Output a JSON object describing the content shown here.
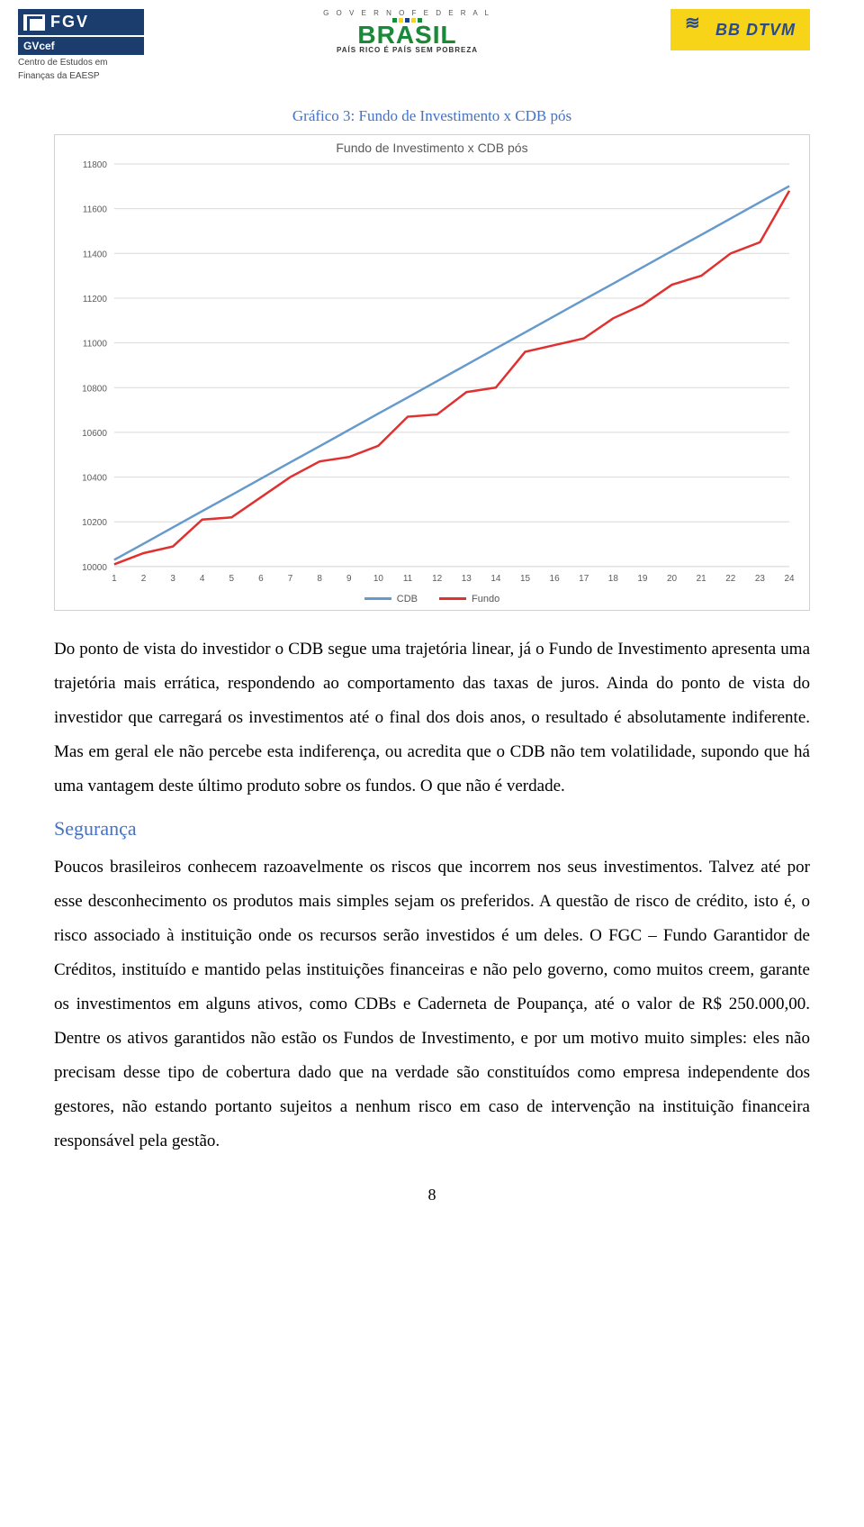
{
  "logos": {
    "fgv": {
      "main": "FGV",
      "cef": "GVcef",
      "sub1": "Centro de Estudos em",
      "sub2": "Finanças da EAESP"
    },
    "brasil": {
      "top": "G O V E R N O   F E D E R A L",
      "main": "BRASIL",
      "sub": "PAÍS RICO É PAÍS SEM POBREZA"
    },
    "bbdtvm": {
      "text": "BB DTVM"
    }
  },
  "chart_caption": "Gráfico 3: Fundo de Investimento x CDB pós",
  "chart": {
    "type": "line",
    "title": "Fundo de Investimento x CDB pós",
    "title_fontsize": 14,
    "title_color": "#5a5a5a",
    "background_color": "#ffffff",
    "grid_color": "#d9d9d9",
    "axis_label_color": "#5a5a5a",
    "axis_fontsize": 10,
    "x_values": [
      1,
      2,
      3,
      4,
      5,
      6,
      7,
      8,
      9,
      10,
      11,
      12,
      13,
      14,
      15,
      16,
      17,
      18,
      19,
      20,
      21,
      22,
      23,
      24
    ],
    "xlim": [
      1,
      24
    ],
    "y_ticks": [
      10000,
      10200,
      10400,
      10600,
      10800,
      11000,
      11200,
      11400,
      11600,
      11800
    ],
    "ylim": [
      10000,
      11800
    ],
    "line_width": 2.5,
    "series": [
      {
        "name": "CDB",
        "color": "#6699cc",
        "values": [
          10030,
          10102,
          10175,
          10248,
          10320,
          10393,
          10466,
          10538,
          10611,
          10684,
          10756,
          10829,
          10902,
          10975,
          11047,
          11120,
          11193,
          11265,
          11338,
          11411,
          11483,
          11556,
          11629,
          11701
        ]
      },
      {
        "name": "Fundo",
        "color": "#e03030",
        "values": [
          10010,
          10060,
          10090,
          10210,
          10220,
          10310,
          10400,
          10470,
          10490,
          10540,
          10670,
          10680,
          10780,
          10800,
          10960,
          10990,
          11020,
          11110,
          11170,
          11260,
          11300,
          11400,
          11450,
          11680
        ]
      }
    ],
    "legend_items": [
      "CDB",
      "Fundo"
    ]
  },
  "paragraph1": "Do ponto de vista do investidor o CDB segue uma trajetória linear, já o Fundo de Investimento apresenta uma trajetória mais errática, respondendo ao comportamento das taxas de juros. Ainda do ponto de vista do investidor que carregará os investimentos até o final dos dois anos, o resultado é absolutamente indiferente. Mas em geral ele não percebe esta indiferença, ou acredita que o CDB não tem volatilidade, supondo que há uma vantagem deste último produto sobre os fundos. O que não é verdade.",
  "heading_seguranca": "Segurança",
  "paragraph2": "Poucos brasileiros conhecem razoavelmente os riscos que incorrem nos seus investimentos. Talvez até por esse desconhecimento os produtos mais simples sejam os preferidos. A questão de risco de crédito, isto é, o risco associado à instituição onde os recursos serão investidos é um deles. O FGC – Fundo Garantidor de Créditos, instituído e mantido pelas instituições financeiras e não pelo governo, como muitos creem, garante os investimentos em alguns ativos, como CDBs e Caderneta de Poupança, até o valor de R$ 250.000,00. Dentre os ativos garantidos não estão os Fundos de Investimento, e por um motivo muito simples: eles não precisam desse tipo de cobertura dado que na verdade são constituídos como empresa independente dos gestores, não estando portanto sujeitos a nenhum risco em caso de intervenção na instituição financeira responsável pela gestão.",
  "page_number": "8"
}
